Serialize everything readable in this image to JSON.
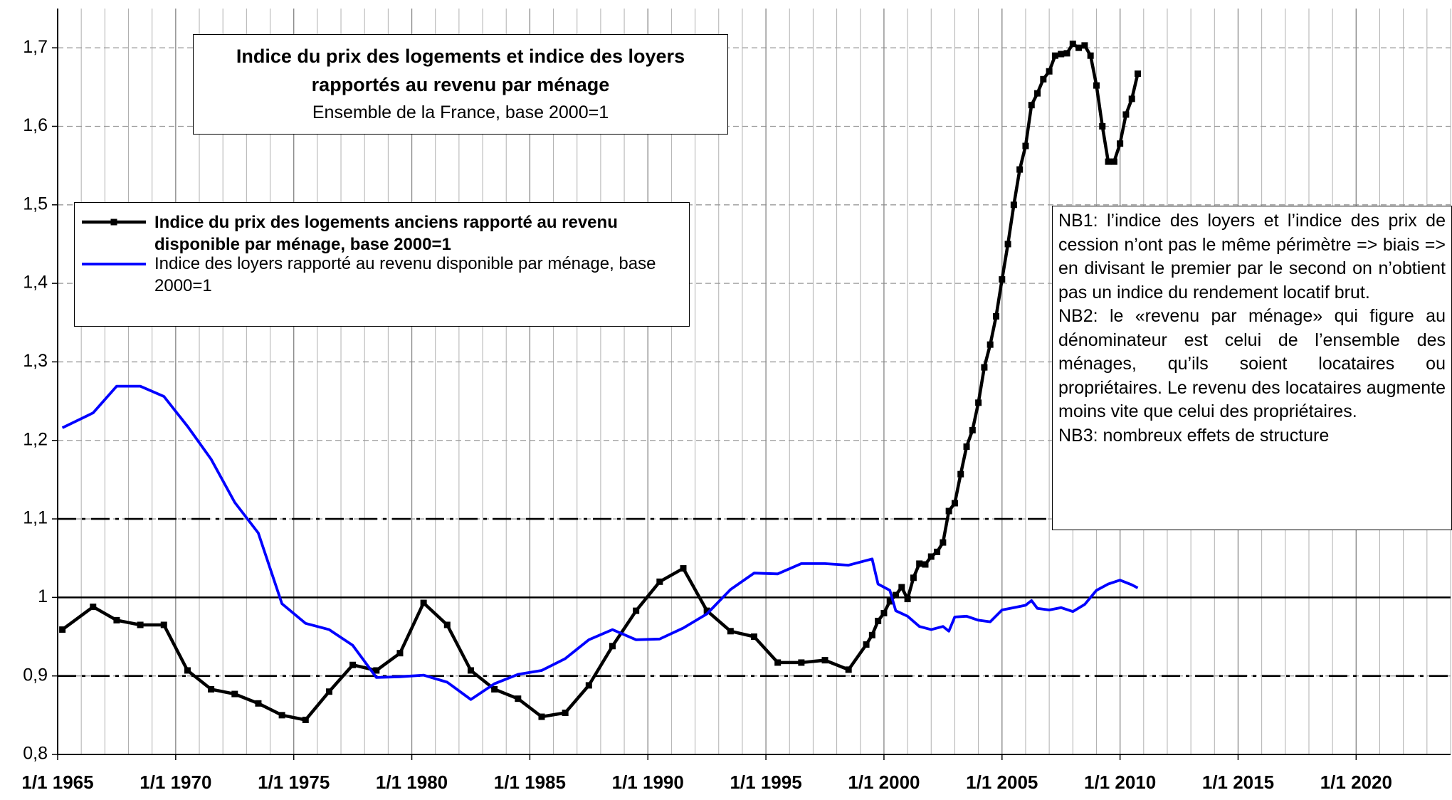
{
  "chart_data": {
    "type": "line",
    "title": "Indice du prix des logements et indice des loyers rapportés au revenu par ménage",
    "subtitle": "Ensemble de la France, base 2000=1",
    "xlim": [
      1965,
      2024
    ],
    "ylim": [
      0.8,
      1.75
    ],
    "xticks": [
      {
        "value": 1965,
        "label": "1/1 1965"
      },
      {
        "value": 1970,
        "label": "1/1 1970"
      },
      {
        "value": 1975,
        "label": "1/1 1975"
      },
      {
        "value": 1980,
        "label": "1/1 1980"
      },
      {
        "value": 1985,
        "label": "1/1 1985"
      },
      {
        "value": 1990,
        "label": "1/1 1990"
      },
      {
        "value": 1995,
        "label": "1/1 1995"
      },
      {
        "value": 2000,
        "label": "1/1 2000"
      },
      {
        "value": 2005,
        "label": "1/1 2005"
      },
      {
        "value": 2010,
        "label": "1/1 2010"
      },
      {
        "value": 2015,
        "label": "1/1 2015"
      },
      {
        "value": 2020,
        "label": "1/1 2020"
      }
    ],
    "yticks": [
      {
        "value": 0.8,
        "label": "0,8"
      },
      {
        "value": 0.9,
        "label": "0,9"
      },
      1,
      {
        "value": 1.1,
        "label": "1,1"
      },
      {
        "value": 1.2,
        "label": "1,2"
      },
      {
        "value": 1.3,
        "label": "1,3"
      },
      {
        "value": 1.4,
        "label": "1,4"
      },
      {
        "value": 1.5,
        "label": "1,5"
      },
      {
        "value": 1.6,
        "label": "1,6"
      },
      {
        "value": 1.7,
        "label": "1,7"
      }
    ],
    "xgrid_step": 1,
    "grid": true,
    "hlines": [
      {
        "value": 1.1,
        "style": "dash-dot"
      },
      {
        "value": 1,
        "style": "solid"
      },
      {
        "value": 0.9,
        "style": "dash-dot"
      }
    ],
    "series": [
      {
        "name": "Indice du prix des logements anciens rapporté au revenu disponible par ménage, base 2000=1",
        "color": "#000000",
        "markers": true,
        "x": [
          1965.2,
          1966.5,
          1967.5,
          1968.5,
          1969.5,
          1970.5,
          1971.5,
          1972.5,
          1973.5,
          1974.5,
          1975.5,
          1976.5,
          1977.5,
          1978.5,
          1979.5,
          1980.5,
          1981.5,
          1982.5,
          1983.5,
          1984.5,
          1985.5,
          1986.5,
          1987.5,
          1988.5,
          1989.5,
          1990.5,
          1991.5,
          1992.5,
          1993.5,
          1994.5,
          1995.5,
          1996.5,
          1997.5,
          1998.5,
          1999.25,
          1999.5,
          1999.75,
          2000,
          2000.25,
          2000.5,
          2000.75,
          2001,
          2001.25,
          2001.5,
          2001.75,
          2002,
          2002.25,
          2002.5,
          2002.75,
          2003,
          2003.25,
          2003.5,
          2003.75,
          2004,
          2004.25,
          2004.5,
          2004.75,
          2005,
          2005.25,
          2005.5,
          2005.75,
          2006,
          2006.25,
          2006.5,
          2006.75,
          2007,
          2007.25,
          2007.5,
          2007.75,
          2008,
          2008.25,
          2008.5,
          2008.75,
          2009,
          2009.25,
          2009.5,
          2009.75,
          2010,
          2010.25,
          2010.5,
          2010.75
        ],
        "values": [
          0.959,
          0.988,
          0.971,
          0.965,
          0.965,
          0.907,
          0.883,
          0.877,
          0.865,
          0.85,
          0.844,
          0.88,
          0.914,
          0.907,
          0.929,
          0.993,
          0.965,
          0.907,
          0.883,
          0.871,
          0.848,
          0.853,
          0.888,
          0.938,
          0.983,
          1.02,
          1.037,
          0.983,
          0.957,
          0.95,
          0.917,
          0.917,
          0.92,
          0.908,
          0.94,
          0.952,
          0.97,
          0.98,
          0.995,
          1.003,
          1.013,
          0.998,
          1.025,
          1.043,
          1.042,
          1.052,
          1.058,
          1.07,
          1.11,
          1.12,
          1.157,
          1.192,
          1.213,
          1.248,
          1.293,
          1.322,
          1.358,
          1.405,
          1.45,
          1.5,
          1.545,
          1.575,
          1.627,
          1.642,
          1.66,
          1.67,
          1.69,
          1.692,
          1.693,
          1.705,
          1.7,
          1.703,
          1.69,
          1.652,
          1.6,
          1.555,
          1.555,
          1.578,
          1.615,
          1.635,
          1.667
        ]
      },
      {
        "name": "Indice des loyers rapporté au revenu disponible par ménage, base 2000=1",
        "color": "#0000ff",
        "markers": false,
        "x": [
          1965.2,
          1966.5,
          1967.5,
          1968.5,
          1969.5,
          1970.5,
          1971.5,
          1972.5,
          1973.5,
          1974.5,
          1975.5,
          1976.5,
          1977.5,
          1978.5,
          1979.5,
          1980.5,
          1981.5,
          1982.5,
          1983.5,
          1984.5,
          1985.5,
          1986.5,
          1987.5,
          1988.5,
          1989.5,
          1990.5,
          1991.5,
          1992.5,
          1993.5,
          1994.5,
          1995.5,
          1996.5,
          1997.5,
          1998.5,
          1999.5,
          1999.75,
          2000.25,
          2000.5,
          2001,
          2001.5,
          2002,
          2002.5,
          2002.75,
          2003,
          2003.5,
          2004,
          2004.5,
          2005,
          2005.5,
          2006,
          2006.25,
          2006.5,
          2007,
          2007.5,
          2008,
          2008.5,
          2009,
          2009.5,
          2010,
          2010.5,
          2010.75
        ],
        "values": [
          1.216,
          1.235,
          1.269,
          1.269,
          1.256,
          1.218,
          1.176,
          1.121,
          1.082,
          0.992,
          0.967,
          0.959,
          0.939,
          0.898,
          0.899,
          0.901,
          0.892,
          0.87,
          0.89,
          0.902,
          0.907,
          0.922,
          0.946,
          0.959,
          0.946,
          0.947,
          0.961,
          0.979,
          1.01,
          1.031,
          1.03,
          1.043,
          1.043,
          1.041,
          1.049,
          1.017,
          1.009,
          0.983,
          0.976,
          0.963,
          0.959,
          0.963,
          0.957,
          0.975,
          0.976,
          0.971,
          0.969,
          0.984,
          0.987,
          0.99,
          0.996,
          0.986,
          0.984,
          0.987,
          0.982,
          0.991,
          1.009,
          1.017,
          1.022,
          1.016,
          1.012
        ]
      }
    ],
    "notes": [
      "NB1: l’indice des loyers et l’indice des prix de cession n’ont pas le même périmètre => biais => en divisant le premier par le second on n’obtient pas un indice du rendement locatif brut.",
      "NB2: le «revenu par ménage» qui figure au dénominateur est celui de l’ensemble des ménages, qu’ils soient locataires ou propriétaires.  Le revenu des locataires augmente moins vite que celui des propriétaires.",
      "NB3: nombreux effets de structure"
    ]
  }
}
